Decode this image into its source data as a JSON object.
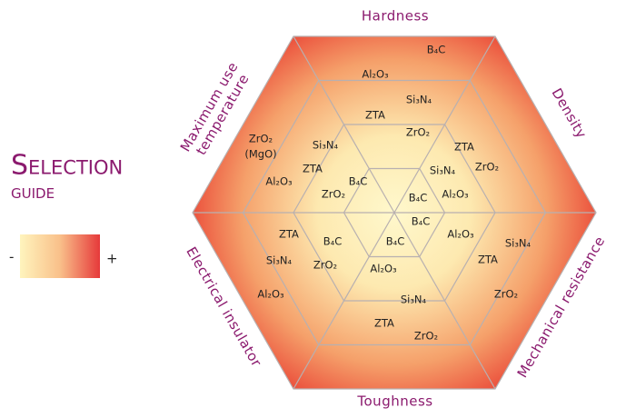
{
  "title": {
    "line1": "Selection",
    "line2": "guide"
  },
  "legend": {
    "low": "-",
    "high": "+"
  },
  "sectors": [
    {
      "axis": [
        "Hardness"
      ],
      "materials": [
        "B₄C",
        "Al₂O₃",
        "Si₃N₄",
        "ZTA",
        "ZrO₂"
      ]
    },
    {
      "axis": [
        "Density"
      ],
      "materials": [
        "ZTA",
        "ZrO₂",
        "Si₃N₄",
        "B₄C",
        "Al₂O₃"
      ]
    },
    {
      "axis": [
        "Mechanical resistance"
      ],
      "materials": [
        "B₄C",
        "Al₂O₃",
        "Si₃N₄",
        "ZTA",
        "ZrO₂"
      ]
    },
    {
      "axis": [
        "Toughness"
      ],
      "materials": [
        "B₄C",
        "Al₂O₃",
        "Si₃N₄",
        "ZTA",
        "ZrO₂"
      ]
    },
    {
      "axis": [
        "Electrical insulator"
      ],
      "materials": [
        "ZTA",
        "B₄C",
        "Si₃N₄",
        "ZrO₂",
        "Al₂O₃"
      ]
    },
    {
      "axis": [
        "Maximum use",
        "temperature"
      ],
      "materials": [
        "ZrO₂",
        "Si₃N₄",
        "ZTA",
        "Al₂O₃",
        "B₄C",
        "ZrO₂"
      ],
      "note": "(MgO)"
    }
  ]
}
